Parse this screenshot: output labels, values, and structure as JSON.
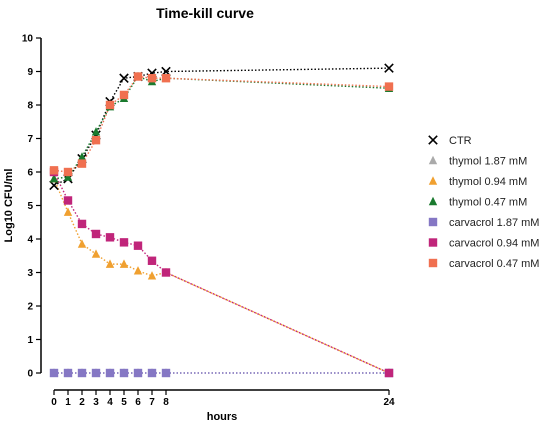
{
  "chart_data": {
    "type": "line",
    "title": "Time-kill curve",
    "xlabel": "hours",
    "ylabel": "Log10 CFU/ml",
    "xticks": [
      0,
      1,
      2,
      3,
      4,
      5,
      6,
      7,
      8,
      24
    ],
    "ylim": [
      0,
      10
    ],
    "yticks": [
      0,
      1,
      2,
      3,
      4,
      5,
      6,
      7,
      8,
      9,
      10
    ],
    "grid": false,
    "legend_position": "right",
    "x": [
      0,
      1,
      2,
      3,
      4,
      5,
      6,
      7,
      8,
      24
    ],
    "series": [
      {
        "name": "CTR",
        "marker": "x",
        "color": "#000000",
        "values": [
          5.6,
          5.8,
          6.4,
          7.1,
          8.1,
          8.8,
          8.85,
          8.95,
          9.0,
          9.1
        ]
      },
      {
        "name": "thymol 1.87 mM",
        "marker": "triangle",
        "color": "#aaaaaa",
        "values": [
          0,
          0,
          0,
          0,
          0,
          0,
          0,
          0,
          0,
          0
        ]
      },
      {
        "name": "thymol 0.94 mM",
        "marker": "triangle",
        "color": "#f0a030",
        "values": [
          5.8,
          4.8,
          3.85,
          3.55,
          3.25,
          3.25,
          3.05,
          2.9,
          3.0,
          0
        ]
      },
      {
        "name": "thymol 0.47 mM",
        "marker": "triangle",
        "color": "#1a7a2e",
        "values": [
          5.8,
          5.85,
          6.45,
          7.2,
          7.95,
          8.2,
          8.85,
          8.7,
          8.8,
          8.5
        ]
      },
      {
        "name": "carvacrol 1.87 mM",
        "marker": "square",
        "color": "#8577c4",
        "values": [
          0,
          0,
          0,
          0,
          0,
          0,
          0,
          0,
          0,
          0
        ]
      },
      {
        "name": "carvacrol 0.94 mM",
        "marker": "square",
        "color": "#c0257a",
        "values": [
          6.0,
          5.15,
          4.45,
          4.15,
          4.05,
          3.9,
          3.8,
          3.35,
          3.0,
          0
        ]
      },
      {
        "name": "carvacrol 0.47 mM",
        "marker": "square",
        "color": "#f07050",
        "values": [
          6.05,
          6.0,
          6.25,
          6.95,
          8.0,
          8.3,
          8.85,
          8.8,
          8.8,
          8.55
        ]
      }
    ]
  }
}
